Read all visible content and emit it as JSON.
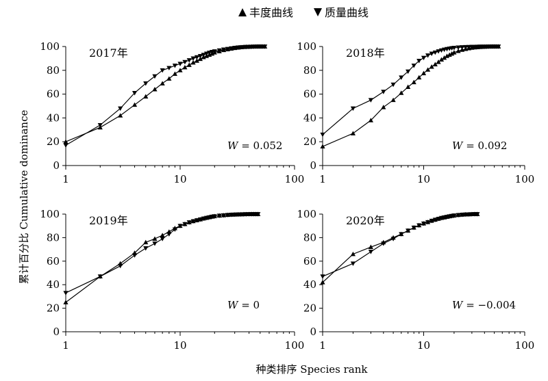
{
  "legend": {
    "items": [
      {
        "marker": "triangle-up",
        "label": "丰度曲线"
      },
      {
        "marker": "triangle-down",
        "label": "质量曲线"
      }
    ]
  },
  "axes": {
    "ylabel": "累计百分比 Cumulative dominance",
    "xlabel": "种类排序 Species rank"
  },
  "chart_data": [
    {
      "type": "line",
      "title": "2017年",
      "w_label": "W",
      "w_value": "= 0.052",
      "xscale": "log",
      "xlim": [
        1,
        100
      ],
      "ylim": [
        0,
        100
      ],
      "xticks": [
        "1",
        "10",
        "100"
      ],
      "yticks": [
        "0",
        "20",
        "40",
        "60",
        "80",
        "100"
      ],
      "series": [
        {
          "name": "丰度曲线",
          "marker": "triangle-up",
          "x": [
            1,
            2,
            3,
            4,
            5,
            6,
            7,
            8,
            9,
            10,
            11,
            12,
            13,
            14,
            15,
            16,
            17,
            18,
            19,
            20,
            22,
            24,
            26,
            28,
            30,
            32,
            34,
            36,
            38,
            40,
            42,
            44,
            46,
            48,
            50,
            52,
            55
          ],
          "y": [
            20,
            32,
            42,
            51,
            58,
            64,
            69,
            73,
            77,
            80,
            82.5,
            84.5,
            86.5,
            88,
            89.5,
            91,
            92,
            93,
            94,
            95,
            96,
            97,
            97.6,
            98.2,
            98.7,
            99.1,
            99.4,
            99.6,
            99.7,
            99.8,
            99.85,
            99.9,
            99.95,
            100,
            100,
            100,
            100
          ]
        },
        {
          "name": "质量曲线",
          "marker": "triangle-down",
          "x": [
            1,
            2,
            3,
            4,
            5,
            6,
            7,
            8,
            9,
            10,
            11,
            12,
            13,
            14,
            15,
            16,
            17,
            18,
            19,
            20,
            22,
            24,
            26,
            28,
            30,
            32,
            34,
            36,
            38,
            40,
            42,
            44,
            46,
            48,
            50,
            52,
            55
          ],
          "y": [
            17,
            34,
            48,
            61,
            69,
            75,
            80,
            82,
            84,
            85.5,
            87,
            88.5,
            90,
            91,
            92,
            93,
            94,
            94.8,
            95.5,
            96,
            96.8,
            97.5,
            98,
            98.5,
            98.9,
            99.2,
            99.4,
            99.6,
            99.7,
            99.8,
            99.85,
            99.9,
            99.95,
            100,
            100,
            100,
            100
          ]
        }
      ]
    },
    {
      "type": "line",
      "title": "2018年",
      "w_label": "W",
      "w_value": "= 0.092",
      "xscale": "log",
      "xlim": [
        1,
        100
      ],
      "ylim": [
        0,
        100
      ],
      "xticks": [
        "1",
        "10",
        "100"
      ],
      "yticks": [
        "0",
        "20",
        "40",
        "60",
        "80",
        "100"
      ],
      "series": [
        {
          "name": "丰度曲线",
          "marker": "triangle-up",
          "x": [
            1,
            2,
            3,
            4,
            5,
            6,
            7,
            8,
            9,
            10,
            11,
            12,
            13,
            14,
            15,
            16,
            17,
            18,
            19,
            20,
            22,
            24,
            26,
            28,
            30,
            32,
            34,
            36,
            38,
            40,
            42,
            44,
            46,
            48,
            50,
            52,
            55
          ],
          "y": [
            16,
            27,
            38,
            49,
            55,
            61,
            66,
            70,
            74,
            77.5,
            80.5,
            83,
            85,
            87,
            89,
            90.5,
            92,
            93,
            94,
            95,
            96.2,
            97.2,
            97.9,
            98.5,
            98.9,
            99.2,
            99.4,
            99.6,
            99.7,
            99.8,
            99.85,
            99.9,
            99.95,
            100,
            100,
            100,
            100
          ]
        },
        {
          "name": "质量曲线",
          "marker": "triangle-down",
          "x": [
            1,
            2,
            3,
            4,
            5,
            6,
            7,
            8,
            9,
            10,
            11,
            12,
            13,
            14,
            15,
            16,
            17,
            18,
            19,
            20,
            22,
            24,
            26,
            28,
            30,
            32,
            34,
            36,
            38,
            40,
            42,
            44,
            46,
            48,
            50,
            52,
            55
          ],
          "y": [
            26,
            48,
            55,
            62,
            68,
            74,
            79,
            84,
            88,
            90.5,
            92.5,
            94,
            95,
            96,
            96.8,
            97.4,
            97.9,
            98.3,
            98.6,
            98.9,
            99.2,
            99.4,
            99.55,
            99.65,
            99.75,
            99.8,
            99.85,
            99.9,
            99.9,
            99.95,
            99.95,
            100,
            100,
            100,
            100,
            100,
            100
          ]
        }
      ]
    },
    {
      "type": "line",
      "title": "2019年",
      "w_label": "W",
      "w_value": "= 0",
      "xscale": "log",
      "xlim": [
        1,
        100
      ],
      "ylim": [
        0,
        100
      ],
      "xticks": [
        "1",
        "10",
        "100"
      ],
      "yticks": [
        "0",
        "20",
        "40",
        "60",
        "80",
        "100"
      ],
      "series": [
        {
          "name": "丰度曲线",
          "marker": "triangle-up",
          "x": [
            1,
            2,
            3,
            4,
            5,
            6,
            7,
            8,
            9,
            10,
            11,
            12,
            13,
            14,
            15,
            16,
            17,
            18,
            19,
            20,
            22,
            24,
            26,
            28,
            30,
            32,
            34,
            36,
            38,
            40,
            42,
            44,
            46,
            48
          ],
          "y": [
            25,
            47,
            58,
            67,
            76,
            79,
            82,
            85,
            88,
            90,
            91.5,
            93,
            94,
            94.8,
            95.5,
            96.2,
            96.8,
            97.3,
            97.8,
            98.2,
            98.7,
            99,
            99.3,
            99.5,
            99.6,
            99.7,
            99.8,
            99.85,
            99.9,
            99.95,
            100,
            100,
            100,
            100
          ]
        },
        {
          "name": "质量曲线",
          "marker": "triangle-down",
          "x": [
            1,
            2,
            3,
            4,
            5,
            6,
            7,
            8,
            9,
            10,
            11,
            12,
            13,
            14,
            15,
            16,
            17,
            18,
            19,
            20,
            22,
            24,
            26,
            28,
            30,
            32,
            34,
            36,
            38,
            40,
            42,
            44,
            46,
            48
          ],
          "y": [
            33,
            47,
            56,
            65,
            71,
            75,
            79,
            83,
            87,
            90,
            91.5,
            93,
            94,
            94.8,
            95.5,
            96.2,
            96.8,
            97.3,
            97.8,
            98.2,
            98.7,
            99,
            99.3,
            99.5,
            99.6,
            99.7,
            99.8,
            99.85,
            99.9,
            99.95,
            100,
            100,
            100,
            100
          ]
        }
      ]
    },
    {
      "type": "line",
      "title": "2020年",
      "w_label": "W",
      "w_value": "= −0.004",
      "xscale": "log",
      "xlim": [
        1,
        100
      ],
      "ylim": [
        0,
        100
      ],
      "xticks": [
        "1",
        "10",
        "100"
      ],
      "yticks": [
        "0",
        "20",
        "40",
        "60",
        "80",
        "100"
      ],
      "series": [
        {
          "name": "丰度曲线",
          "marker": "triangle-up",
          "x": [
            1,
            2,
            3,
            4,
            5,
            6,
            7,
            8,
            9,
            10,
            11,
            12,
            13,
            14,
            15,
            16,
            17,
            18,
            19,
            20,
            22,
            24,
            26,
            28,
            30,
            32,
            34
          ],
          "y": [
            42,
            66,
            72,
            76,
            80,
            83,
            86,
            88.5,
            90.5,
            92,
            93.2,
            94.3,
            95.2,
            96,
            96.7,
            97.2,
            97.7,
            98.1,
            98.5,
            98.8,
            99.2,
            99.5,
            99.7,
            99.8,
            99.9,
            100,
            100
          ]
        },
        {
          "name": "质量曲线",
          "marker": "triangle-down",
          "x": [
            1,
            2,
            3,
            4,
            5,
            6,
            7,
            8,
            9,
            10,
            11,
            12,
            13,
            14,
            15,
            16,
            17,
            18,
            19,
            20,
            22,
            24,
            26,
            28,
            30,
            32,
            34
          ],
          "y": [
            47,
            58,
            68,
            75,
            79,
            83,
            86,
            88.5,
            90.5,
            92,
            93.2,
            94.3,
            95.2,
            96,
            96.7,
            97.2,
            97.7,
            98.1,
            98.5,
            98.8,
            99.2,
            99.5,
            99.7,
            99.8,
            99.9,
            100,
            100
          ]
        }
      ]
    }
  ]
}
